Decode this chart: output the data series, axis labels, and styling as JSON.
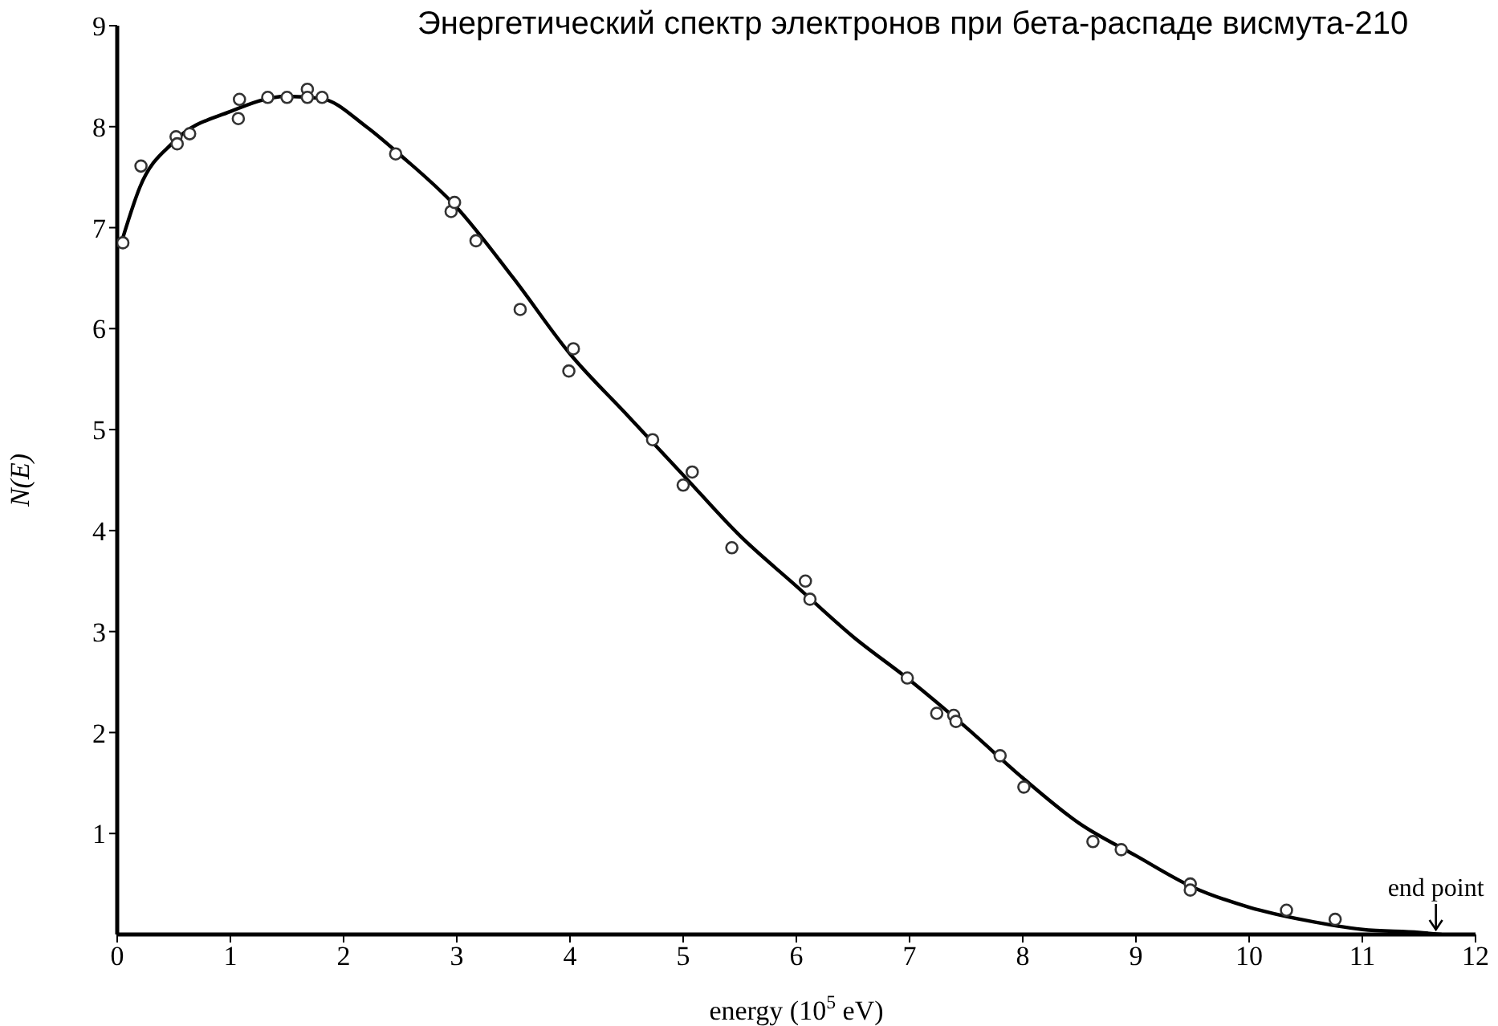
{
  "chart_data": {
    "type": "scatter",
    "title": "Энергетический спектр электронов при бета-распаде висмута-210",
    "xlabel": "energy (10$^{5}$ eV)",
    "ylabel": "N(E)",
    "xlim": [
      0,
      12
    ],
    "xticks": [
      0,
      1,
      2,
      3,
      4,
      5,
      6,
      7,
      8,
      9,
      10,
      11,
      12
    ],
    "ylim": [
      0,
      9
    ],
    "yticks": [
      1,
      2,
      3,
      4,
      5,
      6,
      7,
      8,
      9
    ],
    "grid": false,
    "legend": false,
    "annotations": [
      {
        "text": "end point",
        "x": 11.65,
        "y": 0
      }
    ],
    "series": [
      {
        "color": "#333333",
        "marker": "circle",
        "x": [
          0.05,
          0.21,
          0.52,
          0.53,
          0.64,
          1.07,
          1.08,
          1.33,
          1.5,
          1.68,
          1.68,
          1.81,
          2.46,
          2.95,
          2.98,
          3.17,
          3.56,
          3.99,
          4.03,
          4.73,
          5.0,
          5.08,
          5.43,
          6.08,
          6.12,
          6.98,
          7.24,
          7.39,
          7.41,
          7.8,
          8.01,
          8.62,
          8.87,
          9.48,
          9.48,
          10.33,
          10.76
        ],
        "values": [
          6.85,
          7.61,
          7.9,
          7.83,
          7.93,
          8.08,
          8.27,
          8.29,
          8.29,
          8.37,
          8.29,
          8.29,
          7.73,
          7.16,
          7.25,
          6.87,
          6.19,
          5.58,
          5.8,
          4.9,
          4.45,
          4.58,
          3.83,
          3.5,
          3.32,
          2.54,
          2.19,
          2.17,
          2.11,
          1.77,
          1.46,
          0.92,
          0.84,
          0.5,
          0.44,
          0.24,
          0.15
        ]
      },
      {
        "type": "line",
        "color": "#000000",
        "marker": "none",
        "line_style": "solid",
        "x": [
          0.05,
          0.2,
          0.5,
          1,
          1.5,
          1.8,
          2.2,
          2.5,
          3,
          3.5,
          4,
          4.5,
          5,
          5.5,
          6,
          6.5,
          7,
          7.5,
          8,
          8.5,
          9,
          9.5,
          10,
          10.5,
          11,
          11.5,
          11.7
        ],
        "values": [
          6.9,
          7.4,
          7.85,
          8.15,
          8.3,
          8.28,
          8.0,
          7.72,
          7.2,
          6.5,
          5.75,
          5.15,
          4.55,
          3.95,
          3.45,
          2.95,
          2.52,
          2.05,
          1.55,
          1.1,
          0.78,
          0.47,
          0.27,
          0.14,
          0.05,
          0.02,
          0
        ]
      }
    ]
  }
}
